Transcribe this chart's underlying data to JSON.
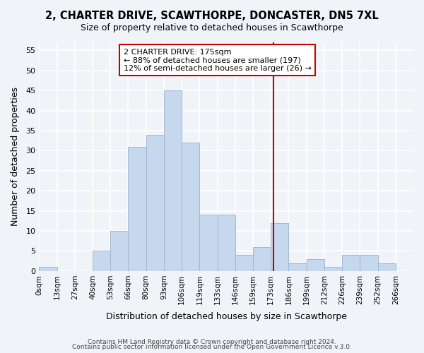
{
  "title1": "2, CHARTER DRIVE, SCAWTHORPE, DONCASTER, DN5 7XL",
  "title2": "Size of property relative to detached houses in Scawthorpe",
  "xlabel": "Distribution of detached houses by size in Scawthorpe",
  "ylabel": "Number of detached properties",
  "bin_labels": [
    "0sqm",
    "13sqm",
    "27sqm",
    "40sqm",
    "53sqm",
    "66sqm",
    "80sqm",
    "93sqm",
    "106sqm",
    "119sqm",
    "133sqm",
    "146sqm",
    "159sqm",
    "173sqm",
    "186sqm",
    "199sqm",
    "212sqm",
    "226sqm",
    "239sqm",
    "252sqm",
    "266sqm"
  ],
  "bar_heights": [
    1,
    0,
    0,
    5,
    10,
    31,
    34,
    45,
    32,
    14,
    14,
    4,
    6,
    12,
    2,
    3,
    1,
    4,
    4,
    2,
    0
  ],
  "bar_color": "#c5d8ed",
  "bar_edge_color": "#a0b8d0",
  "annotation_title": "2 CHARTER DRIVE: 175sqm",
  "annotation_line1": "← 88% of detached houses are smaller (197)",
  "annotation_line2": "12% of semi-detached houses are larger (26) →",
  "annotation_box_color": "#ffffff",
  "annotation_box_edge": "#cc0000",
  "reference_line_color": "#cc0000",
  "ylim": [
    0,
    57
  ],
  "yticks": [
    0,
    5,
    10,
    15,
    20,
    25,
    30,
    35,
    40,
    45,
    50,
    55
  ],
  "footer1": "Contains HM Land Registry data © Crown copyright and database right 2024.",
  "footer2": "Contains public sector information licensed under the Open Government Licence v.3.0.",
  "background_color": "#f0f4f8",
  "grid_color": "#ffffff"
}
